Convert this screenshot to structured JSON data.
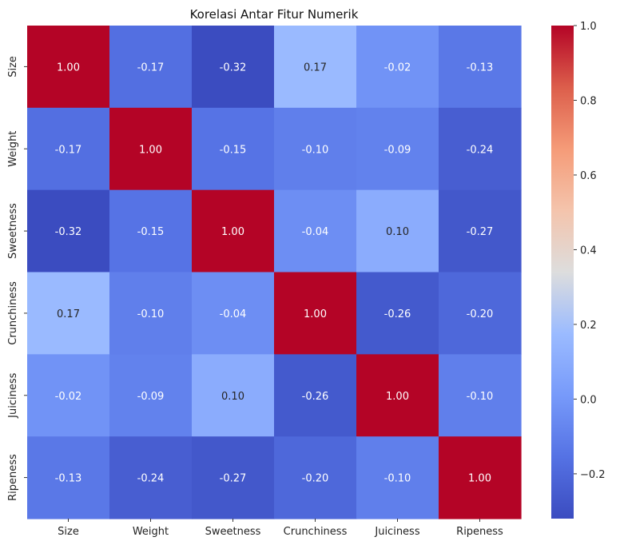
{
  "chart_data": {
    "type": "heatmap",
    "title": "Korelasi Antar Fitur Numerik",
    "colormap": "coolwarm",
    "rows": [
      "Size",
      "Weight",
      "Sweetness",
      "Crunchiness",
      "Juiciness",
      "Ripeness"
    ],
    "columns": [
      "Size",
      "Weight",
      "Sweetness",
      "Crunchiness",
      "Juiciness",
      "Ripeness"
    ],
    "values": [
      [
        1.0,
        -0.17,
        -0.32,
        0.17,
        -0.02,
        -0.13
      ],
      [
        -0.17,
        1.0,
        -0.15,
        -0.1,
        -0.09,
        -0.24
      ],
      [
        -0.32,
        -0.15,
        1.0,
        -0.04,
        0.1,
        -0.27
      ],
      [
        0.17,
        -0.1,
        -0.04,
        1.0,
        -0.26,
        -0.2
      ],
      [
        -0.02,
        -0.09,
        0.1,
        -0.26,
        1.0,
        -0.1
      ],
      [
        -0.13,
        -0.24,
        -0.27,
        -0.2,
        -0.1,
        1.0
      ]
    ],
    "value_format": "0.00",
    "colorbar": {
      "range": [
        -0.32,
        1.0
      ],
      "ticks": [
        1.0,
        0.8,
        0.6,
        0.4,
        0.2,
        0.0,
        -0.2
      ],
      "tick_labels": [
        "1.0",
        "0.8",
        "0.6",
        "0.4",
        "0.2",
        "0.0",
        "−0.2"
      ]
    }
  }
}
